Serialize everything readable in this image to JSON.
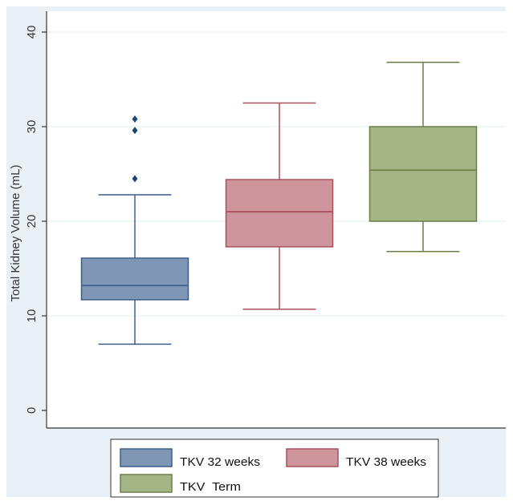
{
  "chart_data": {
    "type": "box",
    "ylabel": "Total Kidney Volume (mL)",
    "ylim": [
      0,
      42
    ],
    "yticks": [
      0,
      10,
      20,
      30,
      40
    ],
    "grid": true,
    "legend_position": "bottom",
    "series": [
      {
        "name": "TKV 32 weeks",
        "color": "#7f96b5",
        "stroke": "#3d5f8a",
        "whisker_low": 7,
        "q1": 11.7,
        "median": 13.2,
        "q3": 16.1,
        "whisker_high": 22.8,
        "outliers": [
          24.5,
          29.6,
          30.8
        ]
      },
      {
        "name": "TKV 38 weeks",
        "color": "#cf959c",
        "stroke": "#a8505a",
        "whisker_low": 10.7,
        "q1": 17.3,
        "median": 21,
        "q3": 24.4,
        "whisker_high": 32.5,
        "outliers": []
      },
      {
        "name": "TKV  Term",
        "color": "#a4b685",
        "stroke": "#6c7f48",
        "whisker_low": 16.8,
        "q1": 20,
        "median": 25.4,
        "q3": 30,
        "whisker_high": 36.8,
        "outliers": []
      }
    ]
  }
}
